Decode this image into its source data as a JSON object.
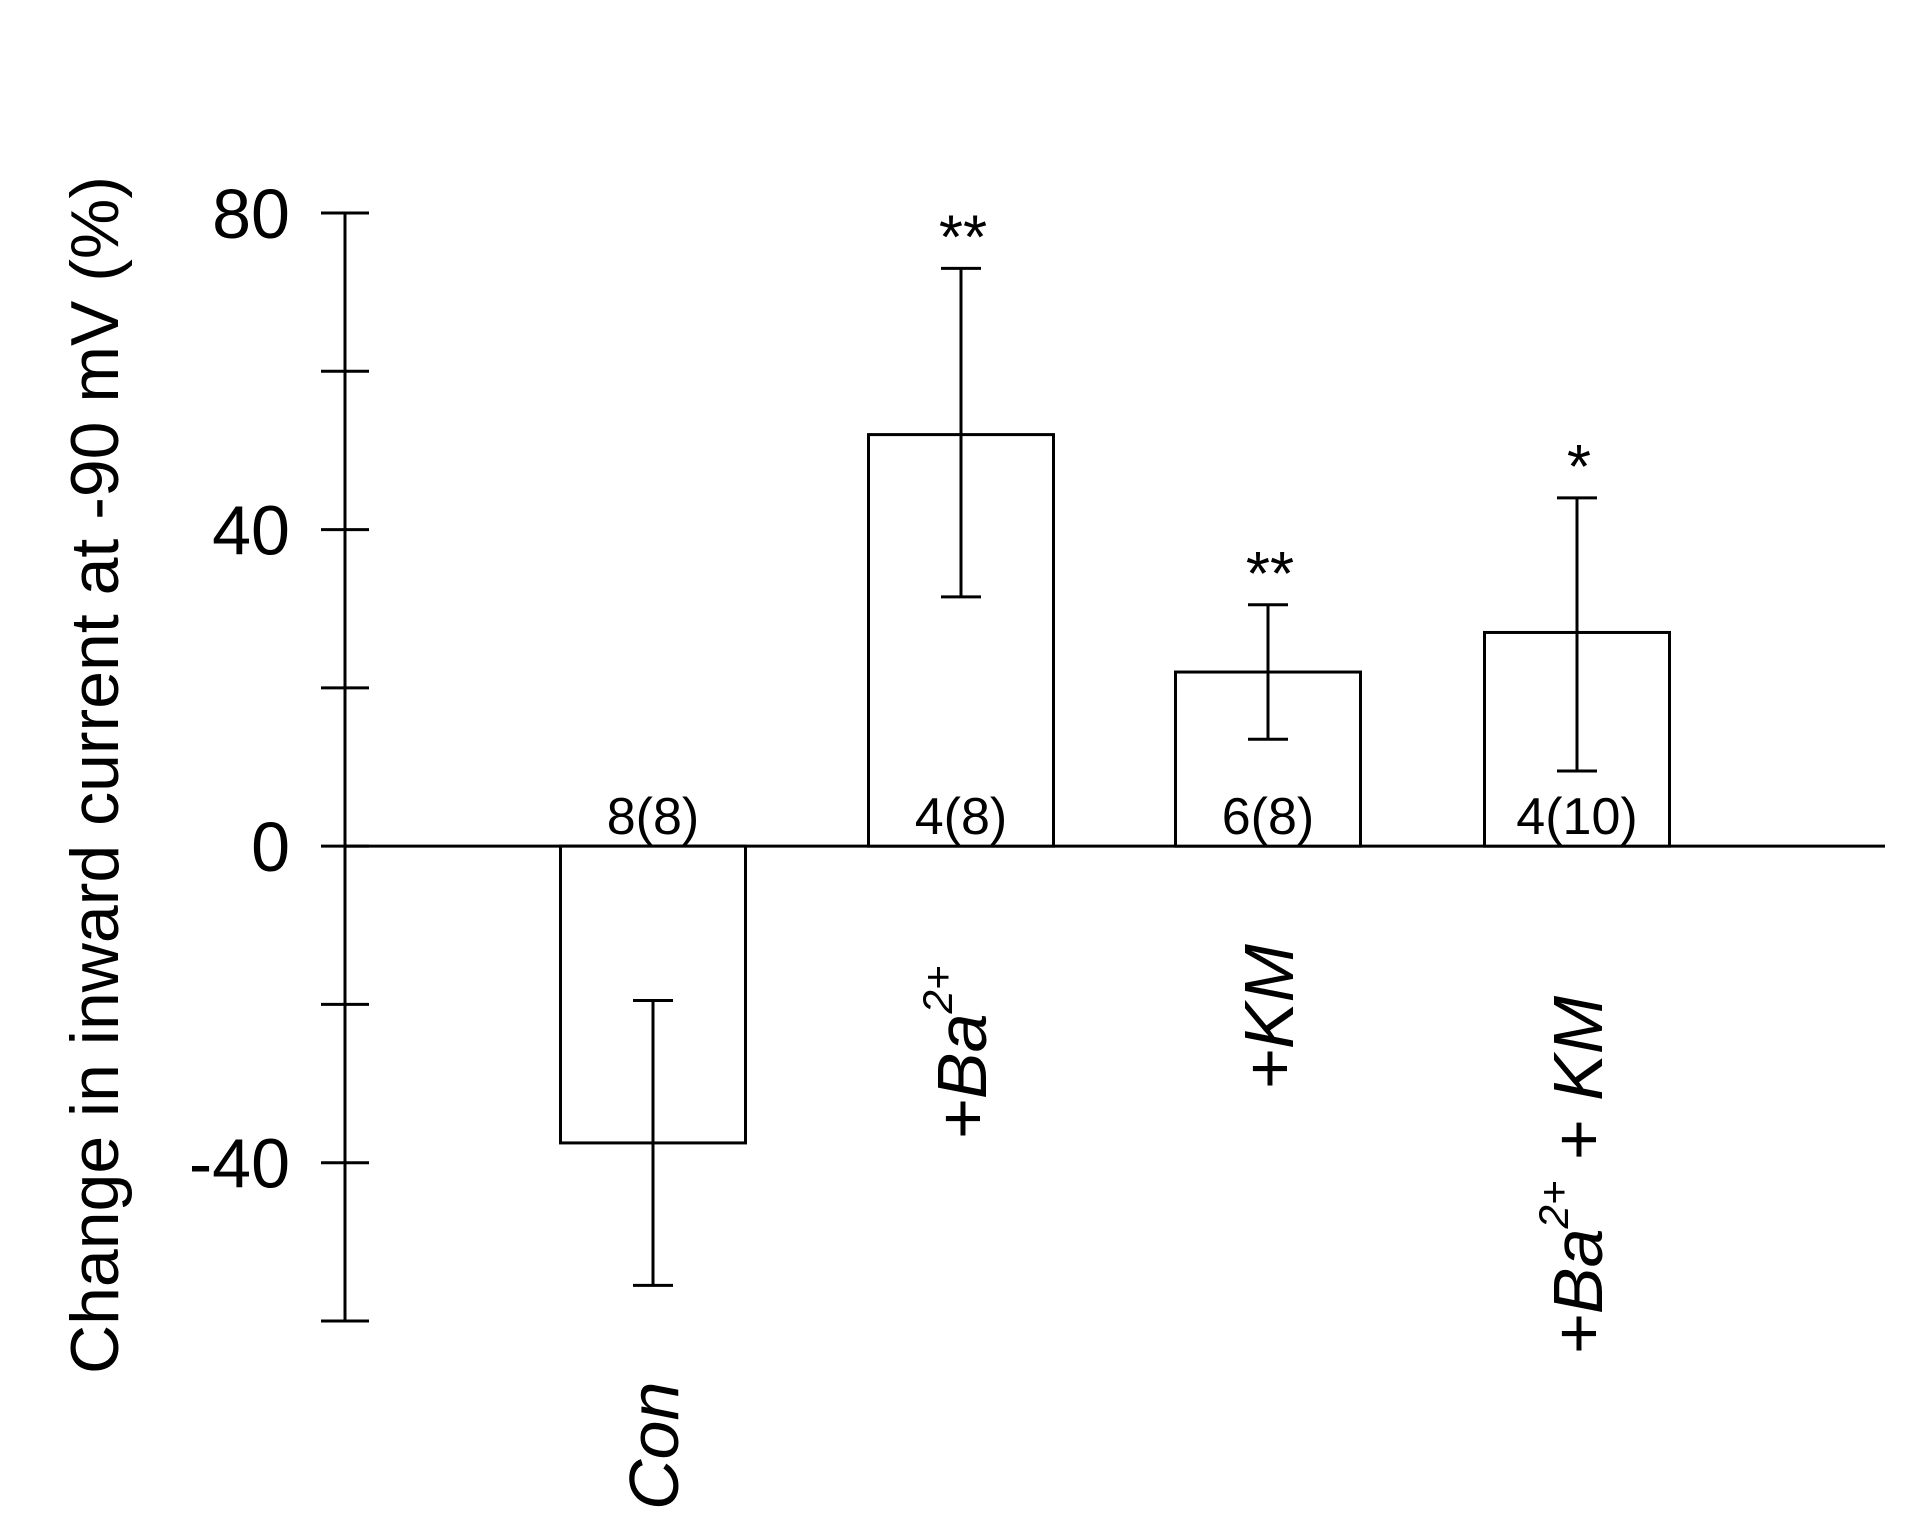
{
  "chart_data": {
    "type": "bar",
    "ylabel": "Change in inward current at -90 mV (%)",
    "xlabel": "",
    "ylim": [
      -60,
      80
    ],
    "y_ticks": [
      80,
      60,
      40,
      20,
      0,
      -20,
      -40,
      -60
    ],
    "y_tick_labels": [
      "80",
      "",
      "40",
      "",
      "0",
      "",
      "-40",
      ""
    ],
    "categories": [
      {
        "label": "Con",
        "base": "Con",
        "sup": "",
        "tail": ""
      },
      {
        "label": "+Ba2+",
        "base": "+Ba",
        "sup": "2+",
        "tail": ""
      },
      {
        "label": "+KM",
        "base": "+KM",
        "sup": "",
        "tail": ""
      },
      {
        "label": "+Ba2+ + KM",
        "base": "+Ba",
        "sup": "2+",
        "tail": " + KM"
      }
    ],
    "values": [
      -37.5,
      52,
      22,
      27
    ],
    "error_low": [
      -55.5,
      31.5,
      13.5,
      9.5
    ],
    "error_high": [
      -19.5,
      73,
      30.5,
      44
    ],
    "n_labels": [
      "8(8)",
      "4(8)",
      "6(8)",
      "4(10)"
    ],
    "significance": [
      "",
      "**",
      "**",
      "*"
    ],
    "grid": false,
    "legend": "none"
  }
}
